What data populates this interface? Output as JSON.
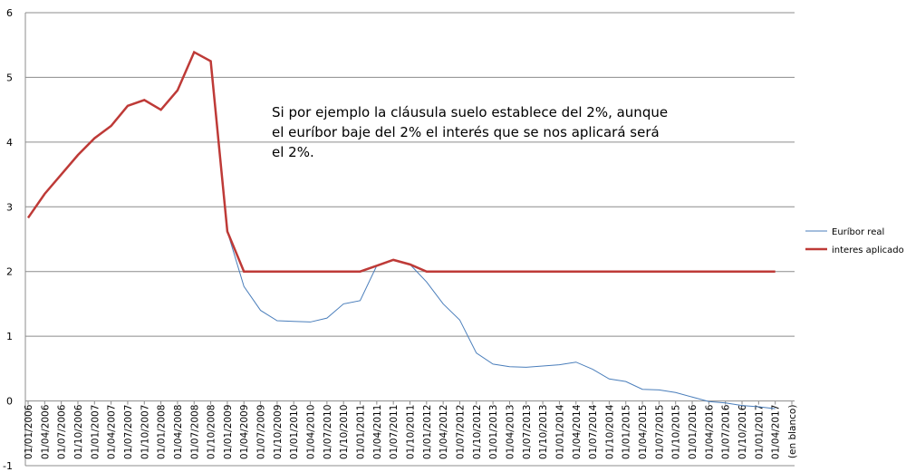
{
  "chart_data": {
    "type": "line",
    "annotation": [
      "Si por ejemplo la cláusula suelo establece del 2%, aunque",
      "el euríbor baje del 2% el interés que se nos aplicará será",
      "el 2%."
    ],
    "categories": [
      "01/01/2006",
      "01/04/2006",
      "01/07/2006",
      "01/10/2006",
      "01/01/2007",
      "01/04/2007",
      "01/07/2007",
      "01/10/2007",
      "01/01/2008",
      "01/04/2008",
      "01/07/2008",
      "01/10/2008",
      "01/01/2009",
      "01/04/2009",
      "01/07/2009",
      "01/10/2009",
      "01/01/2010",
      "01/04/2010",
      "01/07/2010",
      "01/10/2010",
      "01/01/2011",
      "01/04/2011",
      "01/07/2011",
      "01/10/2011",
      "01/01/2012",
      "01/04/2012",
      "01/07/2012",
      "01/10/2012",
      "01/01/2013",
      "01/04/2013",
      "01/07/2013",
      "01/10/2013",
      "01/01/2014",
      "01/04/2014",
      "01/07/2014",
      "01/10/2014",
      "01/01/2015",
      "01/04/2015",
      "01/07/2015",
      "01/10/2015",
      "01/01/2016",
      "01/04/2016",
      "01/07/2016",
      "01/10/2016",
      "01/01/2017",
      "01/04/2017",
      "(en blanco)"
    ],
    "series": [
      {
        "name": "Euríbor real",
        "color": "#4a7ebb",
        "values": [
          2.83,
          3.2,
          3.5,
          3.8,
          4.06,
          4.25,
          4.56,
          4.65,
          4.5,
          4.8,
          5.39,
          5.25,
          2.62,
          1.77,
          1.4,
          1.24,
          1.23,
          1.22,
          1.28,
          1.5,
          1.55,
          2.09,
          2.18,
          2.11,
          1.84,
          1.5,
          1.25,
          0.74,
          0.57,
          0.53,
          0.52,
          0.54,
          0.56,
          0.6,
          0.49,
          0.34,
          0.3,
          0.18,
          0.17,
          0.13,
          0.06,
          -0.01,
          -0.03,
          -0.07,
          -0.09,
          -0.12,
          null
        ]
      },
      {
        "name": "interes aplicado",
        "color": "#be3a37",
        "values": [
          2.83,
          3.2,
          3.5,
          3.8,
          4.06,
          4.25,
          4.56,
          4.65,
          4.5,
          4.8,
          5.39,
          5.25,
          2.62,
          2,
          2,
          2,
          2,
          2,
          2,
          2,
          2,
          2.09,
          2.18,
          2.11,
          2,
          2,
          2,
          2,
          2,
          2,
          2,
          2,
          2,
          2,
          2,
          2,
          2,
          2,
          2,
          2,
          2,
          2,
          2,
          2,
          2,
          2,
          null
        ]
      }
    ],
    "ylim": [
      -1,
      6
    ],
    "yticks": [
      -1,
      0,
      1,
      2,
      3,
      4,
      5,
      6
    ],
    "grid": true,
    "legend": "right"
  }
}
